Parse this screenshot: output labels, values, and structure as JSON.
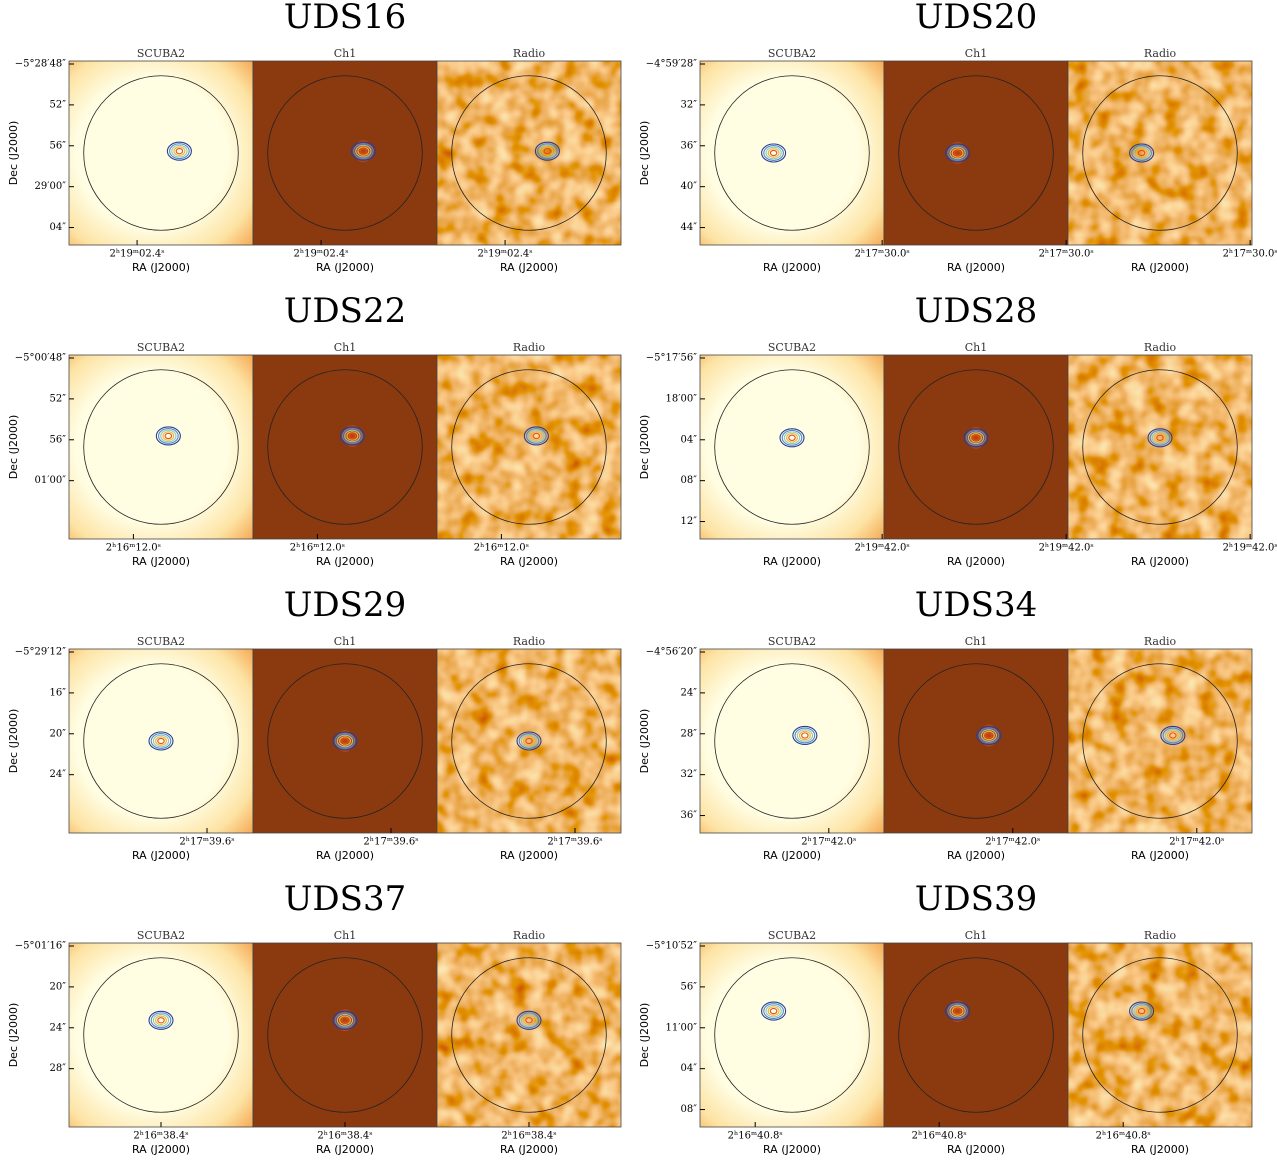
{
  "figure": {
    "panel_names": [
      "SCUBA2",
      "Ch1",
      "Radio"
    ],
    "y_label": "Dec (J2000)",
    "x_label": "RA (J2000)",
    "groups": [
      {
        "title": "UDS16",
        "dec_ticks": [
          "−5°28′48″",
          "52″",
          "56″",
          "29′00″",
          "04″"
        ],
        "ra_tick": "2ʰ19ᵐ02.4ˢ"
      },
      {
        "title": "UDS20",
        "dec_ticks": [
          "−4°59′28″",
          "32″",
          "36″",
          "40″",
          "44″"
        ],
        "ra_tick": "2ʰ17ᵐ30.0ˢ"
      },
      {
        "title": "UDS22",
        "dec_ticks": [
          "−5°00′48″",
          "52″",
          "56″",
          "01′00″"
        ],
        "ra_tick": "2ʰ16ᵐ12.0ˢ"
      },
      {
        "title": "UDS28",
        "dec_ticks": [
          "−5°17′56″",
          "18′00″",
          "04″",
          "08″",
          "12″"
        ],
        "ra_tick": "2ʰ19ᵐ42.0ˢ"
      },
      {
        "title": "UDS29",
        "dec_ticks": [
          "−5°29′12″",
          "16″",
          "20″",
          "24″"
        ],
        "ra_tick": "2ʰ17ᵐ39.6ˢ"
      },
      {
        "title": "UDS34",
        "dec_ticks": [
          "−4°56′20″",
          "24″",
          "28″",
          "32″",
          "36″"
        ],
        "ra_tick": "2ʰ17ᵐ42.0ˢ"
      },
      {
        "title": "UDS37",
        "dec_ticks": [
          "−5°01′16″",
          "20″",
          "24″",
          "28″"
        ],
        "ra_tick": "2ʰ16ᵐ38.4ˢ"
      },
      {
        "title": "UDS39",
        "dec_ticks": [
          "−5°10′52″",
          "56″",
          "11′00″",
          "04″",
          "08″"
        ],
        "ra_tick": "2ʰ16ᵐ40.8ˢ"
      }
    ]
  }
}
